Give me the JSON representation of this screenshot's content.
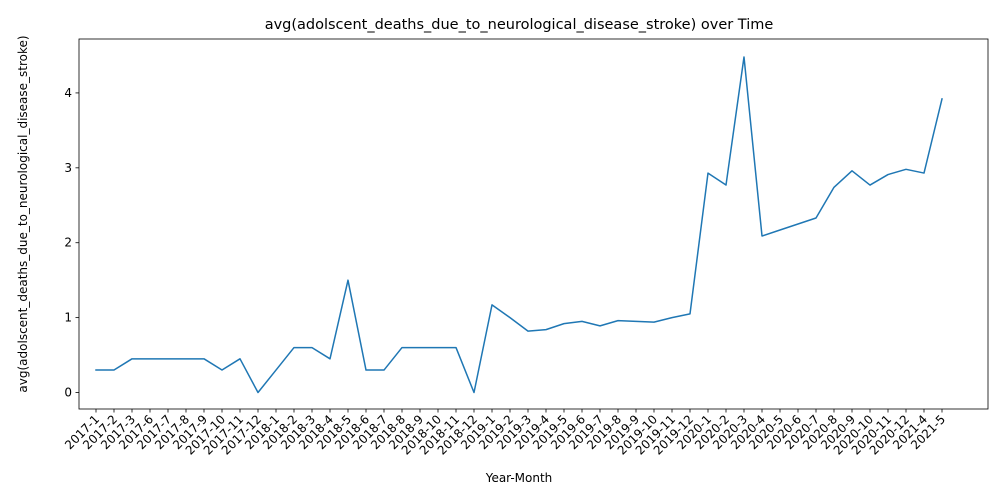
{
  "chart_data": {
    "type": "line",
    "title": "avg(adolscent_deaths_due_to_neurological_disease_stroke) over Time",
    "xlabel": "Year-Month",
    "ylabel": "avg(adolscent_deaths_due_to_neurological_disease_stroke)",
    "ylim": [
      -0.22,
      4.72
    ],
    "yticks": [
      0,
      1,
      2,
      3,
      4
    ],
    "grid": false,
    "line_color": "#1f77b4",
    "categories": [
      "2017-1",
      "2017-2",
      "2017-3",
      "2017-6",
      "2017-7",
      "2017-8",
      "2017-9",
      "2017-10",
      "2017-11",
      "2017-12",
      "2018-1",
      "2018-2",
      "2018-3",
      "2018-4",
      "2018-5",
      "2018-6",
      "2018-7",
      "2018-8",
      "2018-9",
      "2018-10",
      "2018-11",
      "2018-12",
      "2019-1",
      "2019-2",
      "2019-3",
      "2019-4",
      "2019-5",
      "2019-6",
      "2019-7",
      "2019-8",
      "2019-9",
      "2019-10",
      "2019-11",
      "2019-12",
      "2020-1",
      "2020-2",
      "2020-3",
      "2020-4",
      "2020-5",
      "2020-6",
      "2020-7",
      "2020-8",
      "2020-9",
      "2020-10",
      "2020-11",
      "2020-12",
      "2021-4",
      "2021-5"
    ],
    "series": [
      {
        "values": [
          0.3,
          0.3,
          0.45,
          0.45,
          0.45,
          0.45,
          0.45,
          0.3,
          0.45,
          0.0,
          0.3,
          0.6,
          0.6,
          0.45,
          1.5,
          0.3,
          0.3,
          0.6,
          0.6,
          0.6,
          0.6,
          0.0,
          1.17,
          1.0,
          0.82,
          0.84,
          0.92,
          0.95,
          0.89,
          0.96,
          0.95,
          0.94,
          1.0,
          1.05,
          2.93,
          2.77,
          4.48,
          2.09,
          2.17,
          2.25,
          2.33,
          2.74,
          2.96,
          2.77,
          2.91,
          2.98,
          2.93,
          3.92
        ]
      }
    ]
  }
}
